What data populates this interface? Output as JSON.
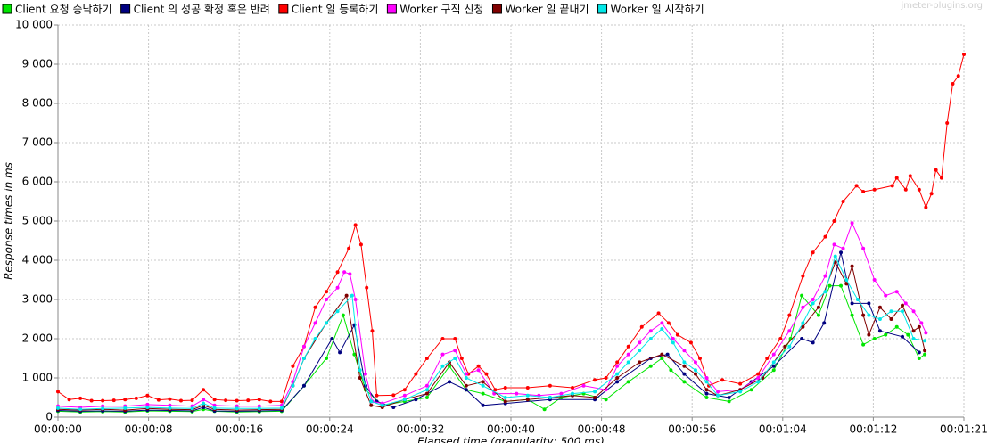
{
  "chart_data": {
    "type": "line",
    "watermark": "jmeter-plugins.org",
    "x_label": "Elapsed time (granularity: 500 ms)",
    "y_label": "Response times in ms",
    "xlim": [
      0,
      81
    ],
    "ylim": [
      0,
      10000
    ],
    "xticks": [
      {
        "value": 0,
        "label": "00:00:00"
      },
      {
        "value": 8.1,
        "label": "00:00:08"
      },
      {
        "value": 16.2,
        "label": "00:00:16"
      },
      {
        "value": 24.3,
        "label": "00:00:24"
      },
      {
        "value": 32.4,
        "label": "00:00:32"
      },
      {
        "value": 40.5,
        "label": "00:00:40"
      },
      {
        "value": 48.6,
        "label": "00:00:48"
      },
      {
        "value": 56.7,
        "label": "00:00:56"
      },
      {
        "value": 64.8,
        "label": "00:01:04"
      },
      {
        "value": 72.9,
        "label": "00:01:12"
      },
      {
        "value": 81,
        "label": "00:01:21"
      }
    ],
    "yticks": [
      0,
      {
        "value": 1000,
        "label": "1 000"
      },
      {
        "value": 2000,
        "label": "2 000"
      },
      {
        "value": 3000,
        "label": "3 000"
      },
      {
        "value": 4000,
        "label": "4 000"
      },
      {
        "value": 5000,
        "label": "5 000"
      },
      {
        "value": 6000,
        "label": "6 000"
      },
      {
        "value": 7000,
        "label": "7 000"
      },
      {
        "value": 8000,
        "label": "8 000"
      },
      {
        "value": 9000,
        "label": "9 000"
      },
      {
        "value": 10000,
        "label": "10 000"
      }
    ],
    "grid": true,
    "series": [
      {
        "name": "Client 요청 승낙하기",
        "color": "#00e600",
        "x": [
          0,
          2,
          4,
          6,
          8,
          10,
          12,
          13,
          14,
          16,
          18,
          20,
          22,
          24,
          25.5,
          26.5,
          27.5,
          29,
          31,
          33,
          35,
          36.5,
          38,
          40,
          42,
          43.5,
          45,
          47,
          49,
          51,
          53,
          54,
          54.8,
          56,
          58,
          60,
          62,
          64,
          65.5,
          66.5,
          68,
          69,
          70,
          71,
          72,
          73,
          74,
          75,
          76,
          77,
          77.5
        ],
        "values": [
          150,
          130,
          140,
          130,
          160,
          150,
          140,
          200,
          150,
          130,
          140,
          150,
          800,
          1500,
          2600,
          1600,
          700,
          300,
          400,
          500,
          1300,
          700,
          600,
          400,
          450,
          200,
          500,
          600,
          450,
          900,
          1300,
          1500,
          1200,
          900,
          500,
          400,
          700,
          1200,
          2000,
          3100,
          2600,
          3350,
          3350,
          2600,
          1850,
          2000,
          2100,
          2300,
          2100,
          1500,
          1600
        ]
      },
      {
        "name": "Client 의 성공 확정 혹은 반려",
        "color": "#000080",
        "x": [
          0,
          2,
          4,
          6,
          8,
          10,
          12,
          13,
          14,
          16,
          18,
          20,
          22,
          24.5,
          25.2,
          26.5,
          27.5,
          28.5,
          30,
          32,
          35,
          36.5,
          38,
          40,
          44,
          48,
          50,
          53,
          54.5,
          56,
          58,
          60,
          62,
          64,
          66.5,
          67.5,
          68.5,
          70,
          71,
          72.5,
          73.5,
          75.5,
          77
        ],
        "values": [
          170,
          150,
          160,
          150,
          180,
          170,
          160,
          250,
          160,
          150,
          160,
          170,
          800,
          2000,
          1650,
          2350,
          800,
          400,
          250,
          450,
          900,
          700,
          300,
          350,
          450,
          450,
          900,
          1500,
          1600,
          1100,
          600,
          500,
          900,
          1300,
          2000,
          1900,
          2400,
          4200,
          2900,
          2900,
          2200,
          2050,
          1650
        ]
      },
      {
        "name": "Client 일 등록하기",
        "color": "#ff0000",
        "x": [
          0,
          1,
          2,
          3,
          4,
          5,
          6,
          7,
          8,
          9,
          10,
          11,
          12,
          13,
          14,
          15,
          16,
          17,
          18,
          19,
          20,
          21,
          22,
          23,
          24,
          25,
          26,
          26.6,
          27.1,
          27.6,
          28.1,
          28.5,
          30,
          31,
          32,
          33,
          34.4,
          35.5,
          36.1,
          36.7,
          37.6,
          38.3,
          39.1,
          40,
          42,
          44,
          46,
          48,
          49,
          50,
          51,
          52.2,
          53.7,
          54.6,
          55.4,
          56.6,
          57.4,
          58.2,
          59.4,
          61,
          62.6,
          63.4,
          64.6,
          65.4,
          66.6,
          67.5,
          68.6,
          69.4,
          70.2,
          71.4,
          72,
          73,
          74.6,
          75,
          75.8,
          76.2,
          77,
          77.6,
          78.1,
          78.5,
          79,
          79.5,
          80,
          80.5,
          81
        ],
        "values": [
          650,
          450,
          480,
          420,
          420,
          430,
          450,
          480,
          550,
          440,
          460,
          420,
          430,
          700,
          450,
          430,
          420,
          430,
          450,
          400,
          400,
          1300,
          1800,
          2800,
          3200,
          3700,
          4300,
          4900,
          4400,
          3300,
          2200,
          550,
          560,
          700,
          1100,
          1500,
          2000,
          2000,
          1500,
          1100,
          1300,
          1100,
          700,
          750,
          750,
          800,
          750,
          950,
          1000,
          1400,
          1800,
          2300,
          2650,
          2400,
          2100,
          1900,
          1500,
          800,
          950,
          850,
          1100,
          1500,
          2000,
          2600,
          3600,
          4200,
          4600,
          5000,
          5500,
          5900,
          5750,
          5800,
          5900,
          6100,
          5800,
          6150,
          5800,
          5350,
          5700,
          6300,
          6100,
          7500,
          8500,
          8700,
          9250
        ]
      },
      {
        "name": "Worker 구직 신청",
        "color": "#ff00ff",
        "x": [
          0,
          2,
          4,
          6,
          8,
          10,
          12,
          13,
          14,
          16,
          18,
          20,
          21,
          22,
          23,
          24,
          25,
          25.6,
          26.1,
          26.6,
          27.5,
          28.1,
          29,
          31,
          33,
          34.4,
          35.5,
          36.5,
          37.6,
          39,
          41,
          43,
          45,
          47,
          49,
          50,
          51,
          52,
          53,
          54,
          55,
          56,
          57,
          58,
          59,
          61,
          62.6,
          64,
          65.4,
          66.6,
          67.5,
          68.6,
          69.4,
          70.2,
          71,
          72,
          73,
          74,
          75,
          75.8,
          76.5,
          77.2,
          77.6
        ],
        "values": [
          280,
          250,
          280,
          280,
          320,
          300,
          280,
          450,
          300,
          280,
          280,
          300,
          900,
          1800,
          2400,
          3000,
          3300,
          3700,
          3650,
          3000,
          1100,
          400,
          350,
          550,
          800,
          1600,
          1700,
          1100,
          1200,
          600,
          600,
          550,
          600,
          800,
          700,
          1300,
          1600,
          1900,
          2200,
          2400,
          2000,
          1700,
          1400,
          1000,
          650,
          700,
          1000,
          1600,
          2200,
          2800,
          3000,
          3600,
          4400,
          4300,
          4950,
          4300,
          3500,
          3100,
          3200,
          2900,
          2700,
          2400,
          2150
        ]
      },
      {
        "name": "Worker 일 끝내기",
        "color": "#800000",
        "x": [
          0,
          2,
          4,
          6,
          8,
          10,
          12,
          13,
          14,
          16,
          18,
          20,
          21,
          22,
          24,
          25.8,
          27,
          28,
          29,
          31,
          33,
          35,
          36.5,
          38,
          40,
          42,
          44,
          46,
          48,
          50,
          52,
          54,
          56,
          57,
          58,
          59,
          61,
          63,
          65,
          66.6,
          68,
          69.5,
          70.5,
          71,
          72,
          72.5,
          73.5,
          74.5,
          75.5,
          76.5,
          77,
          77.5
        ],
        "values": [
          200,
          180,
          200,
          180,
          220,
          200,
          190,
          300,
          200,
          180,
          190,
          200,
          800,
          1500,
          2400,
          3100,
          1000,
          300,
          250,
          450,
          600,
          1400,
          800,
          900,
          400,
          450,
          500,
          550,
          500,
          1000,
          1400,
          1600,
          1300,
          1100,
          700,
          550,
          700,
          1000,
          1800,
          2300,
          2800,
          3950,
          3400,
          3850,
          2600,
          2100,
          2800,
          2500,
          2850,
          2200,
          2300,
          1700
        ]
      },
      {
        "name": "Worker 일 시작하기",
        "color": "#00e8e8",
        "x": [
          0,
          2,
          4,
          6,
          8,
          10,
          12,
          13,
          14,
          16,
          18,
          20,
          21,
          22,
          23,
          24,
          25,
          26.3,
          27,
          28,
          29,
          31,
          33,
          34.4,
          35.5,
          36.5,
          38,
          40,
          42,
          44,
          46,
          48,
          50,
          51,
          52,
          53,
          54,
          55,
          56,
          57,
          58,
          59,
          61,
          62.6,
          64,
          65.4,
          66.6,
          67.5,
          68.6,
          69.5,
          70.5,
          71.5,
          72.5,
          73.5,
          74.5,
          75.5,
          76.5,
          77.5
        ],
        "values": [
          230,
          200,
          220,
          230,
          250,
          230,
          220,
          350,
          230,
          220,
          220,
          230,
          800,
          1500,
          2000,
          2400,
          2700,
          3100,
          1200,
          400,
          300,
          450,
          700,
          1300,
          1500,
          1000,
          800,
          500,
          550,
          500,
          600,
          650,
          1100,
          1400,
          1700,
          2000,
          2250,
          1900,
          1400,
          1200,
          900,
          550,
          650,
          900,
          1400,
          1800,
          2400,
          2900,
          3200,
          4100,
          3500,
          3000,
          2600,
          2500,
          2700,
          2700,
          2000,
          1950
        ]
      }
    ]
  }
}
